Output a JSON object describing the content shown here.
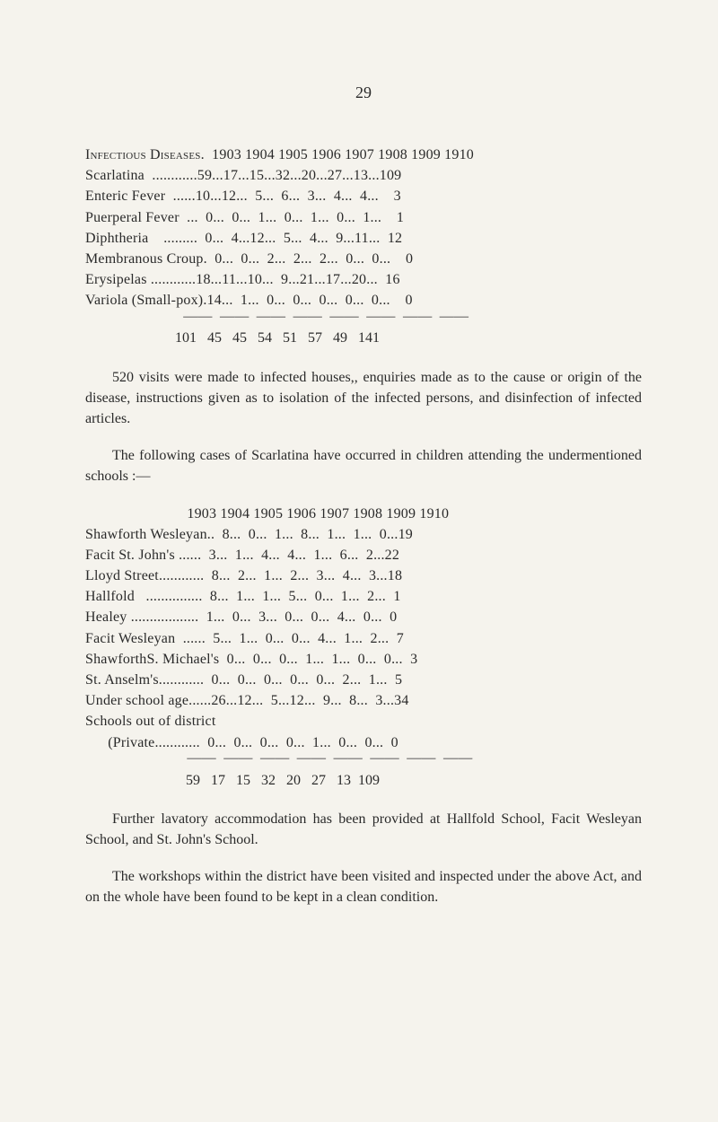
{
  "page_number": "29",
  "table1": {
    "header": "Infectious Diseases.  1903 1904 1905 1906 1907 1908 1909 1910",
    "rows": [
      "Scarlatina  ............59...17...15...32...20...27...13...109",
      "Enteric Fever  ......10...12...  5...  6...  3...  4...  4...    3",
      "Puerperal Fever  ...  0...  0...  1...  0...  1...  0...  1...    1",
      "Diphtheria    .........  0...  4...12...  5...  4...  9...11...  12",
      "Membranous Croup.  0...  0...  2...  2...  2...  0...  0...    0",
      "Erysipelas ............18...11...10...  9...21...17...20...  16",
      "Variola (Small-pox).14...  1...  0...  0...  0...  0...  0...    0"
    ],
    "rule": "                          ——  ——  ——  ——  ——  ——  ——  ——",
    "total": "                         101   45   45   54   51   57   49   141"
  },
  "para1": "520 visits were made to infected houses,, enquiries made as to the cause or origin of the disease, instructions given as to isolation of the infected persons, and disinfec­tion of infected articles.",
  "para2": "The following cases of Scarlatina have occurred in children attending the undermentioned schools :—",
  "table2": {
    "header": "                           1903 1904 1905 1906 1907 1908 1909 1910",
    "rows": [
      "Shawforth Wesleyan..  8...  0...  1...  8...  1...  1...  0...19",
      "Facit St. John's ......  3...  1...  4...  4...  1...  6...  2...22",
      "Lloyd Street............  8...  2...  1...  2...  3...  4...  3...18",
      "Hallfold   ...............  8...  1...  1...  5...  0...  1...  2...  1",
      "Healey ..................  1...  0...  3...  0...  0...  4...  0...  0",
      "Facit Wesleyan  ......  5...  1...  0...  0...  4...  1...  2...  7",
      "ShawforthS. Michael's  0...  0...  0...  1...  1...  0...  0...  3",
      "St. Anselm's............  0...  0...  0...  0...  0...  2...  1...  5",
      "Under school age......26...12...  5...12...  9...  8...  3...34",
      "Schools out of district",
      "      (Private............  0...  0...  0...  0...  1...  0...  0...  0"
    ],
    "rule": "                           ——  ——  ——  ——  ——  ——  ——  ——",
    "total": "                            59   17   15   32   20   27   13  109"
  },
  "para3": "Further lavatory accommodation has been provided at Hallfold School, Facit Wesleyan School, and St. John's School.",
  "para4": "The workshops within the district have been visited and inspected under the above Act, and on the whole have been found to be kept in a clean condition.",
  "colors": {
    "background": "#f5f3ed",
    "text": "#2a2a2a"
  },
  "typography": {
    "body_fontsize": 16,
    "page_number_fontsize": 18,
    "font_family": "Georgia, Times New Roman, serif"
  }
}
